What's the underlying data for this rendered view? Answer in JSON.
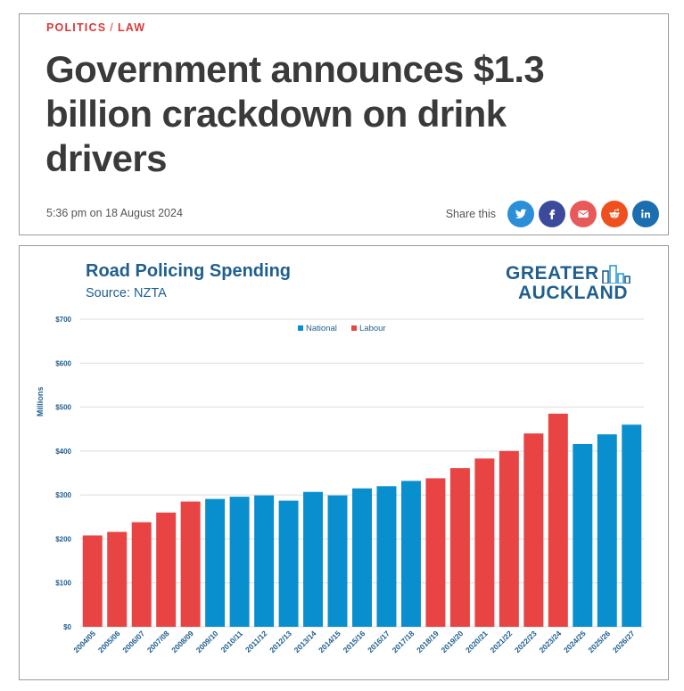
{
  "article": {
    "category_1": "POLITICS",
    "category_sep": "/",
    "category_2": "LAW",
    "headline": "Government announces $1.3 billion crackdown on drink drivers",
    "timestamp": "5:36 pm on 18 August 2024",
    "share_label": "Share this",
    "share_buttons": [
      {
        "name": "twitter",
        "color": "#2a8fd8"
      },
      {
        "name": "facebook",
        "color": "#3b4a9a"
      },
      {
        "name": "email",
        "color": "#e85a5a"
      },
      {
        "name": "reddit",
        "color": "#f0501e"
      },
      {
        "name": "linkedin",
        "color": "#1b6fb0"
      }
    ]
  },
  "brand": {
    "line1": "GREATER",
    "line2": "AUCKLAND"
  },
  "colors": {
    "national": "#0a8fce",
    "labour": "#e84444",
    "text": "#1f5f8f",
    "grid": "#dcdcdc"
  },
  "chart_data": {
    "type": "bar",
    "title": "Road Policing Spending",
    "subtitle": "Source: NZTA",
    "ylabel": "Millions",
    "xlabel": "",
    "ylim": [
      0,
      700
    ],
    "yticks": [
      "$0",
      "$100",
      "$200",
      "$300",
      "$400",
      "$500",
      "$600",
      "$700"
    ],
    "legend": [
      {
        "name": "National",
        "color": "#0a8fce"
      },
      {
        "name": "Labour",
        "color": "#e84444"
      }
    ],
    "categories": [
      "2004/05",
      "2005/06",
      "2006/07",
      "2007/08",
      "2008/09",
      "2009/10",
      "2010/11",
      "2011/12",
      "2012/13",
      "2013/14",
      "2014/15",
      "2015/16",
      "2016/17",
      "2017/18",
      "2018/19",
      "2019/20",
      "2020/21",
      "2021/22",
      "2022/23",
      "2023/24",
      "2024/25",
      "2025/26",
      "2026/27"
    ],
    "values": [
      208,
      216,
      238,
      260,
      285,
      291,
      296,
      299,
      287,
      307,
      299,
      315,
      320,
      332,
      338,
      361,
      383,
      400,
      440,
      485,
      416,
      438,
      460
    ],
    "party": [
      "Labour",
      "Labour",
      "Labour",
      "Labour",
      "Labour",
      "National",
      "National",
      "National",
      "National",
      "National",
      "National",
      "National",
      "National",
      "National",
      "Labour",
      "Labour",
      "Labour",
      "Labour",
      "Labour",
      "Labour",
      "National",
      "National",
      "National"
    ]
  }
}
